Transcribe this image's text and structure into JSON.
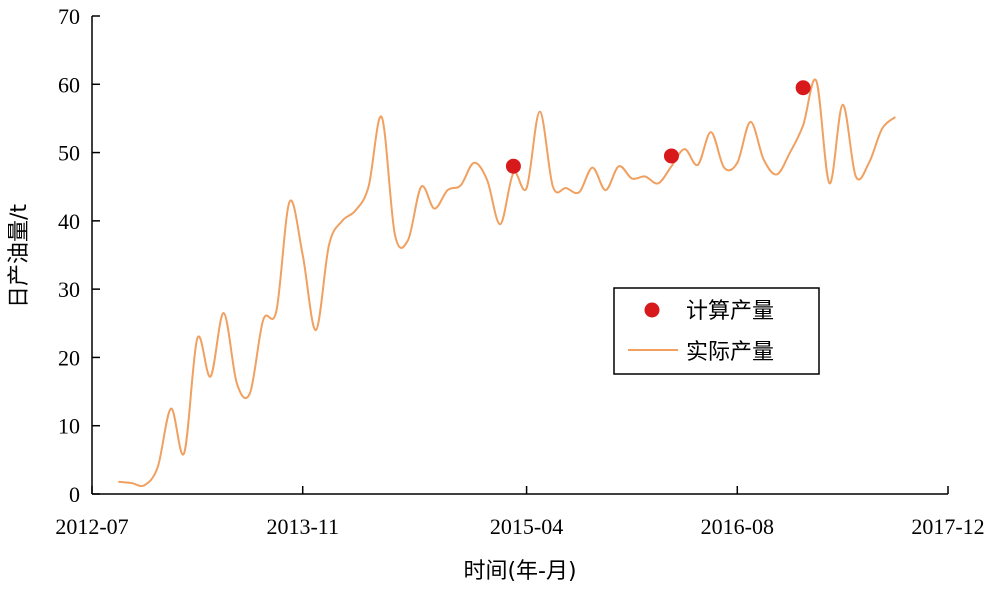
{
  "chart_data": {
    "type": "line",
    "xlabel": "时间(年-月)",
    "ylabel": "日产油量/t",
    "ylim": [
      0,
      70
    ],
    "yticks": [
      0,
      10,
      20,
      30,
      40,
      50,
      60,
      70
    ],
    "xticks": [
      "2012-07",
      "2013-11",
      "2015-04",
      "2016-08",
      "2017-12"
    ],
    "legend_position": "center-right",
    "colors": {
      "line": "#f0a060",
      "marker": "#d7191c",
      "axis": "#000000"
    },
    "series": [
      {
        "name": "计算产量",
        "kind": "scatter",
        "points": [
          [
            "2015-03",
            48.0
          ],
          [
            "2016-03",
            49.5
          ],
          [
            "2017-01",
            59.5
          ]
        ]
      },
      {
        "name": "实际产量",
        "kind": "line",
        "points": [
          [
            "2012-09",
            1.8
          ],
          [
            "2012-10",
            1.6
          ],
          [
            "2012-11",
            1.3
          ],
          [
            "2012-12",
            4.0
          ],
          [
            "2013-01",
            12.5
          ],
          [
            "2013-02",
            6.0
          ],
          [
            "2013-03",
            22.8
          ],
          [
            "2013-04",
            17.2
          ],
          [
            "2013-05",
            26.5
          ],
          [
            "2013-06",
            16.2
          ],
          [
            "2013-07",
            14.8
          ],
          [
            "2013-08",
            25.5
          ],
          [
            "2013-09",
            26.8
          ],
          [
            "2013-10",
            42.8
          ],
          [
            "2013-11",
            35.0
          ],
          [
            "2013-12",
            24.0
          ],
          [
            "2014-01",
            36.5
          ],
          [
            "2014-02",
            40.0
          ],
          [
            "2014-03",
            41.5
          ],
          [
            "2014-04",
            45.0
          ],
          [
            "2014-05",
            55.2
          ],
          [
            "2014-06",
            38.0
          ],
          [
            "2014-07",
            37.2
          ],
          [
            "2014-08",
            45.0
          ],
          [
            "2014-09",
            41.8
          ],
          [
            "2014-10",
            44.5
          ],
          [
            "2014-11",
            45.2
          ],
          [
            "2014-12",
            48.5
          ],
          [
            "2015-01",
            46.0
          ],
          [
            "2015-02",
            39.5
          ],
          [
            "2015-03",
            47.0
          ],
          [
            "2015-04",
            44.8
          ],
          [
            "2015-05",
            56.0
          ],
          [
            "2015-06",
            45.0
          ],
          [
            "2015-07",
            44.8
          ],
          [
            "2015-08",
            44.2
          ],
          [
            "2015-09",
            47.8
          ],
          [
            "2015-10",
            44.5
          ],
          [
            "2015-11",
            48.0
          ],
          [
            "2015-12",
            46.2
          ],
          [
            "2016-01",
            46.5
          ],
          [
            "2016-02",
            45.5
          ],
          [
            "2016-03",
            48.0
          ],
          [
            "2016-04",
            50.5
          ],
          [
            "2016-05",
            48.2
          ],
          [
            "2016-06",
            53.0
          ],
          [
            "2016-07",
            47.8
          ],
          [
            "2016-08",
            48.5
          ],
          [
            "2016-09",
            54.5
          ],
          [
            "2016-10",
            49.0
          ],
          [
            "2016-11",
            46.8
          ],
          [
            "2016-12",
            50.0
          ],
          [
            "2017-01",
            54.0
          ],
          [
            "2017-02",
            60.5
          ],
          [
            "2017-03",
            45.5
          ],
          [
            "2017-04",
            57.0
          ],
          [
            "2017-05",
            46.5
          ],
          [
            "2017-06",
            48.5
          ],
          [
            "2017-07",
            53.5
          ],
          [
            "2017-08",
            55.2
          ]
        ]
      }
    ]
  }
}
